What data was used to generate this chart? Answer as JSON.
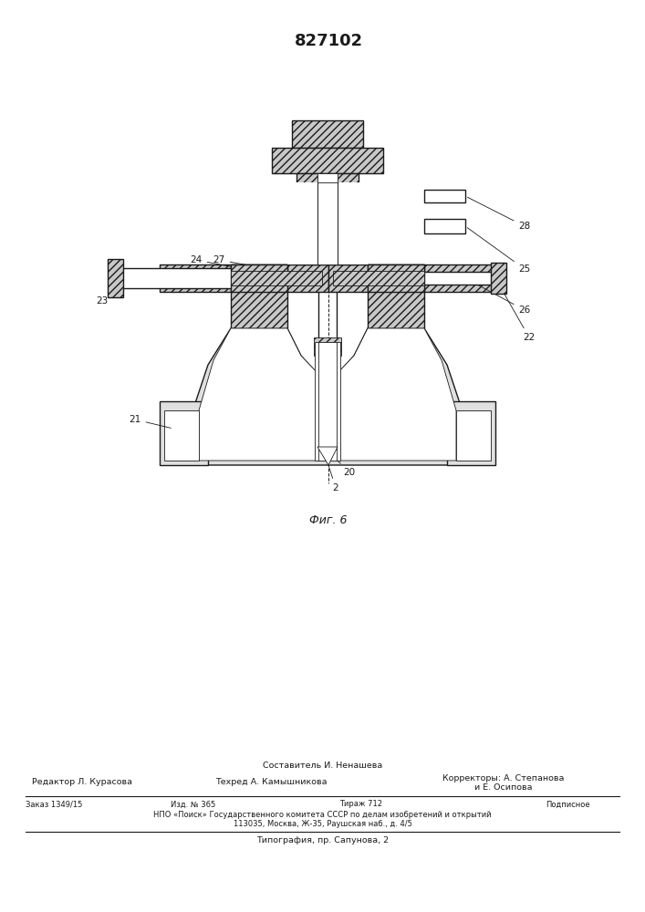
{
  "patent_number": "827102",
  "fig_label": "Фиг. 6",
  "background_color": "#ffffff",
  "line_color": "#000000",
  "hatch_color": "#000000",
  "footer": {
    "composer": "Составитель И. Ненашева",
    "editor_label": "Редактор",
    "editor_name": "Л. Курасова",
    "tech_label": "Техред",
    "tech_name": "А. Камышникова",
    "correctors_label": "Корректоры:",
    "corrector1": "А. Степанова",
    "corrector2": "и Е. Осипова",
    "order": "Заказ 1349/15",
    "edition": "Изд. № 365",
    "circulation": "Тираж 712",
    "subscription": "Подписное",
    "npo": "НПО «Поиск» Государственного комитета СССР по делам изобретений и открытий",
    "address": "113035, Москва, Ж-35, Раушская наб., д. 4/5",
    "typography": "Типография, пр. Сапунова, 2"
  }
}
